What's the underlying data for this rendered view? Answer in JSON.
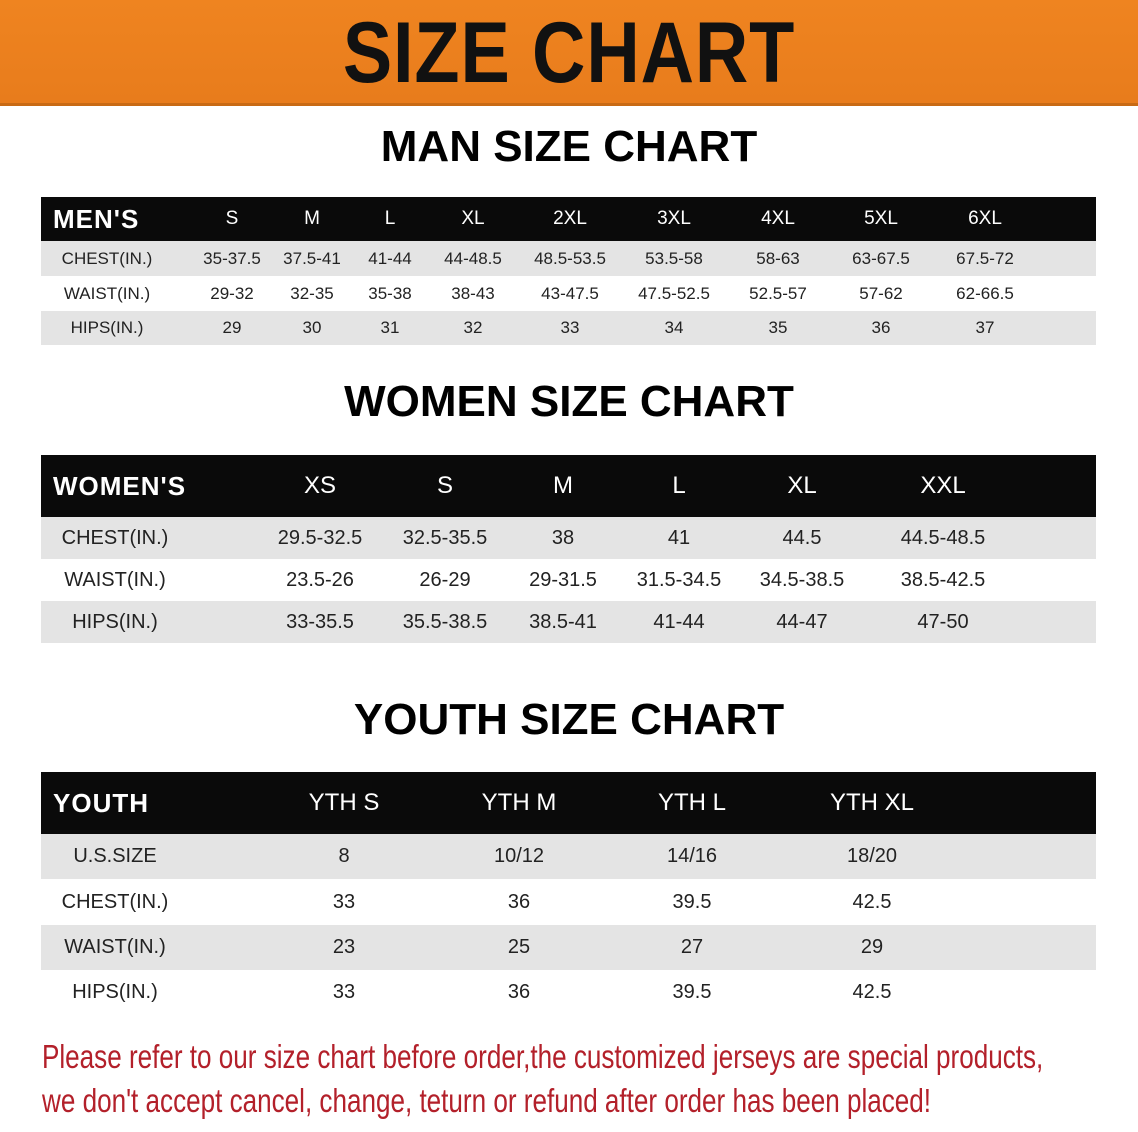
{
  "banner": {
    "title": "SIZE CHART",
    "color": "#ec8220"
  },
  "men": {
    "title": "MAN SIZE CHART",
    "header": [
      "MEN'S",
      "S",
      "M",
      "L",
      "XL",
      "2XL",
      "3XL",
      "4XL",
      "5XL",
      "6XL"
    ],
    "rows": [
      [
        "CHEST(IN.)",
        "35-37.5",
        "37.5-41",
        "41-44",
        "44-48.5",
        "48.5-53.5",
        "53.5-58",
        "58-63",
        "63-67.5",
        "67.5-72"
      ],
      [
        "WAIST(IN.)",
        "29-32",
        "32-35",
        "35-38",
        "38-43",
        "43-47.5",
        "47.5-52.5",
        "52.5-57",
        "57-62",
        "62-66.5"
      ],
      [
        "HIPS(IN.)",
        "29",
        "30",
        "31",
        "32",
        "33",
        "34",
        "35",
        "36",
        "37"
      ]
    ]
  },
  "women": {
    "title": "WOMEN SIZE CHART",
    "header": [
      "WOMEN'S",
      "XS",
      "S",
      "M",
      "L",
      "XL",
      "XXL"
    ],
    "rows": [
      [
        "CHEST(IN.)",
        "29.5-32.5",
        "32.5-35.5",
        "38",
        "41",
        "44.5",
        "44.5-48.5"
      ],
      [
        "WAIST(IN.)",
        "23.5-26",
        "26-29",
        "29-31.5",
        "31.5-34.5",
        "34.5-38.5",
        "38.5-42.5"
      ],
      [
        "HIPS(IN.)",
        "33-35.5",
        "35.5-38.5",
        "38.5-41",
        "41-44",
        "44-47",
        "47-50"
      ]
    ]
  },
  "youth": {
    "title": "YOUTH SIZE CHART",
    "header": [
      "YOUTH",
      "YTH S",
      "YTH M",
      "YTH L",
      "YTH XL"
    ],
    "rows": [
      [
        "U.S.SIZE",
        "8",
        "10/12",
        "14/16",
        "18/20"
      ],
      [
        "CHEST(IN.)",
        "33",
        "36",
        "39.5",
        "42.5"
      ],
      [
        "WAIST(IN.)",
        "23",
        "25",
        "27",
        "29"
      ],
      [
        "HIPS(IN.)",
        "33",
        "36",
        "39.5",
        "42.5"
      ]
    ]
  },
  "notice": {
    "line1": "Please refer to our size chart before order,the customized jerseys are special products,",
    "line2": "we don't accept cancel, change, teturn or refund after order has been placed!",
    "color": "#b3202a"
  }
}
